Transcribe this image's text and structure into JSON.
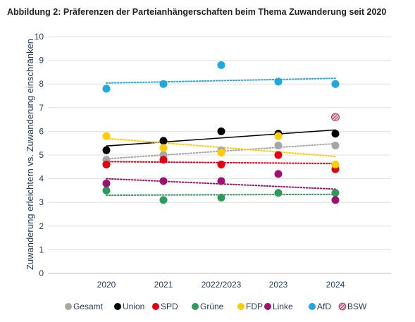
{
  "chart_data": {
    "type": "scatter",
    "title": "Abbildung 2: Präferenzen der Parteianhängerschaften beim Thema Zuwanderung seit 2020",
    "xlabel": "",
    "ylabel": "Zuwanderung erleichtern vs. Zuwanderung einschränken",
    "categories": [
      "2020",
      "2021",
      "2022/2023",
      "2023",
      "2024"
    ],
    "ylim": [
      0,
      10
    ],
    "yticks": [
      0,
      1,
      2,
      3,
      4,
      5,
      6,
      7,
      8,
      9,
      10
    ],
    "grid": "horizontal",
    "trendlines": true,
    "legend_position": "bottom",
    "series": [
      {
        "name": "Gesamt",
        "color": "#a6a6a6",
        "values": [
          4.8,
          5.0,
          5.2,
          5.4,
          5.4
        ]
      },
      {
        "name": "Union",
        "color": "#000000",
        "values": [
          5.2,
          5.6,
          6.0,
          5.9,
          5.9
        ]
      },
      {
        "name": "SPD",
        "color": "#e3000f",
        "values": [
          4.6,
          4.8,
          4.6,
          5.0,
          4.4
        ]
      },
      {
        "name": "Grüne",
        "color": "#2e9a5e",
        "values": [
          3.5,
          3.1,
          3.2,
          3.4,
          3.4
        ]
      },
      {
        "name": "FDP",
        "color": "#ffcc00",
        "values": [
          5.8,
          5.3,
          5.1,
          5.8,
          4.6
        ]
      },
      {
        "name": "Linke",
        "color": "#a0106e",
        "values": [
          3.8,
          3.9,
          3.9,
          4.2,
          3.1
        ]
      },
      {
        "name": "AfD",
        "color": "#1ea7e1",
        "values": [
          7.8,
          8.0,
          8.8,
          8.1,
          8.0
        ]
      },
      {
        "name": "BSW",
        "color": "#a52a5c",
        "values": [
          null,
          null,
          null,
          null,
          6.6
        ],
        "pattern": "hatched"
      }
    ]
  }
}
